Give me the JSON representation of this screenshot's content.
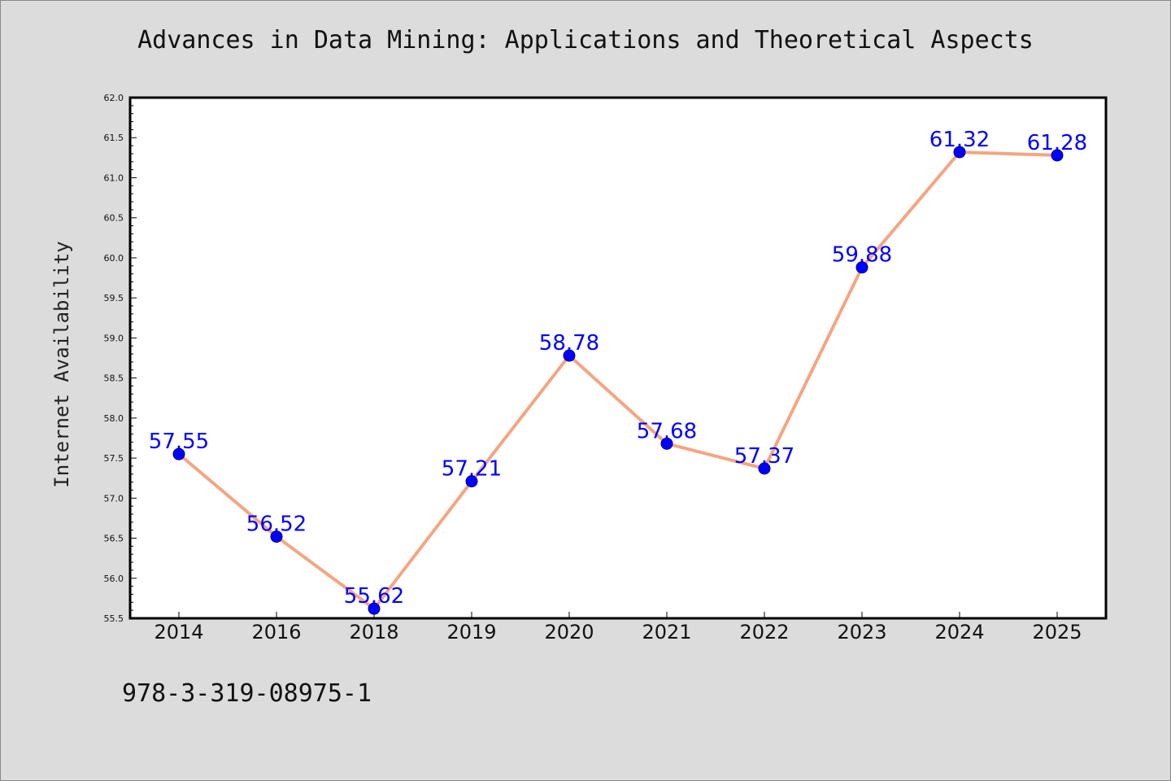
{
  "chart_data": {
    "type": "line",
    "title": "Advances in Data Mining: Applications and Theoretical Aspects",
    "xlabel": "",
    "ylabel": "Internet Availability",
    "categories": [
      "2014",
      "2016",
      "2018",
      "2019",
      "2020",
      "2021",
      "2022",
      "2023",
      "2024",
      "2025"
    ],
    "series": [
      {
        "values": [
          57.55,
          56.52,
          55.62,
          57.21,
          58.78,
          57.68,
          57.37,
          59.88,
          61.32,
          61.28
        ],
        "data_labels": [
          "57.55",
          "56.52",
          "55.62",
          "57.21",
          "58.78",
          "57.68",
          "57.37",
          "59.88",
          "61.32",
          "61.28"
        ]
      }
    ],
    "ylim": [
      55.5,
      62.0
    ],
    "yticks": [
      "55.5",
      "56.0",
      "56.5",
      "57.0",
      "57.5",
      "58.0",
      "58.5",
      "59.0",
      "59.5",
      "60.0",
      "60.5",
      "61.0",
      "61.5",
      "62.0"
    ],
    "grid": false,
    "legend": "none",
    "colors": {
      "line": "#f4a582",
      "marker": "#0000ff",
      "marker_edge": "#000080",
      "data_label": "#0000ff",
      "background": "#dcdcdc",
      "plot_background": "#ffffff"
    }
  },
  "footer": {
    "text": "978-3-319-08975-1"
  }
}
